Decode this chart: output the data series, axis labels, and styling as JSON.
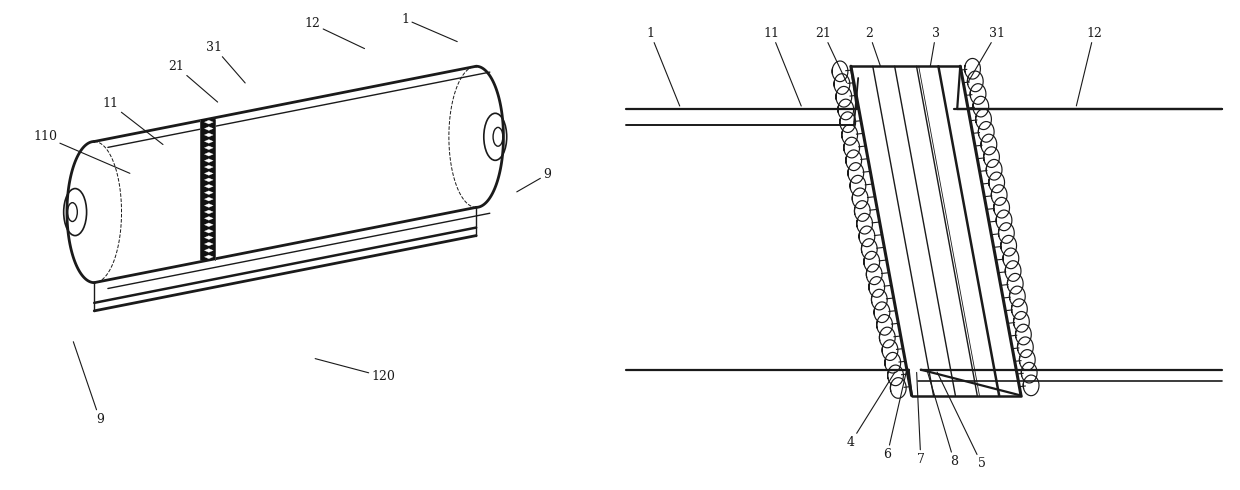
{
  "bg_color": "#ffffff",
  "line_color": "#1a1a1a",
  "fig_width": 12.4,
  "fig_height": 4.9,
  "dpi": 100
}
